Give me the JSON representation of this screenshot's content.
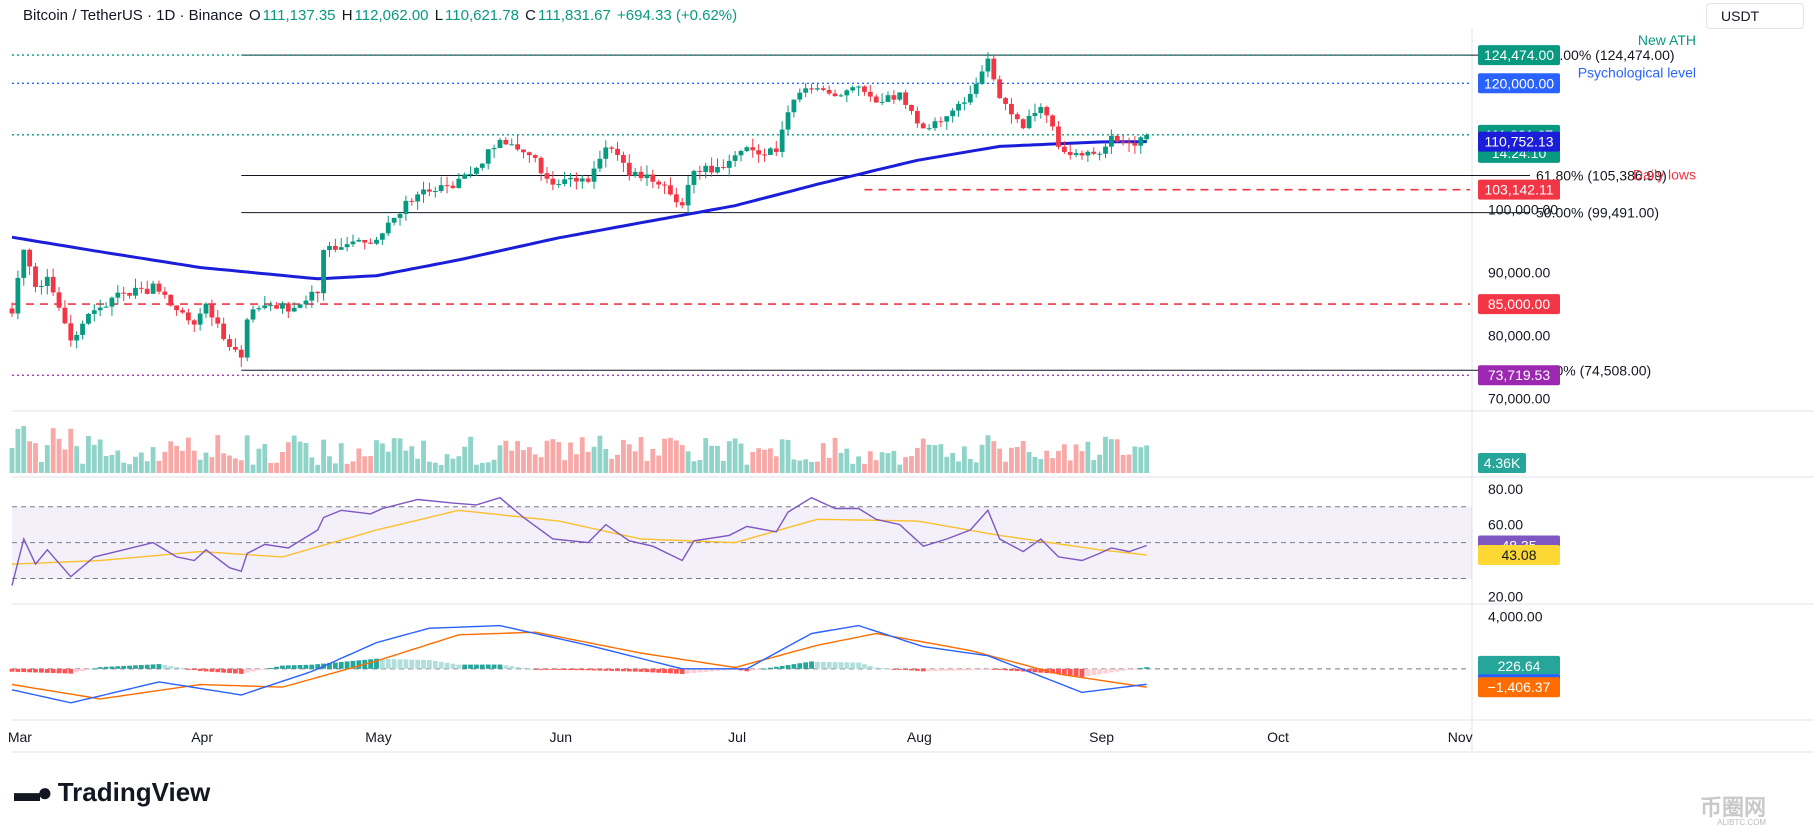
{
  "header": {
    "symbol": "Bitcoin / TetherUS · 1D · Binance",
    "o_label": "O",
    "o_value": "111,137.35",
    "h_label": "H",
    "h_value": "112,062.00",
    "l_label": "L",
    "l_value": "110,621.78",
    "c_label": "C",
    "c_value": "111,831.67",
    "change": "+694.33 (+0.62%)"
  },
  "currency": "USDT",
  "brand": "TradingView",
  "watermark": "币圈网",
  "watermark_sub": "ALIBTC.COM",
  "chart_data": [
    {
      "type": "candlestick",
      "pane": "price",
      "x_range": [
        "2025-02-28",
        "2025-11-03"
      ],
      "x_ticks": [
        "Mar",
        "Apr",
        "May",
        "Jun",
        "Jul",
        "Aug",
        "Sep",
        "Oct",
        "Nov"
      ],
      "x_tick_dates": [
        "2025-03-01",
        "2025-04-01",
        "2025-05-01",
        "2025-06-01",
        "2025-07-01",
        "2025-08-01",
        "2025-09-01",
        "2025-10-01",
        "2025-11-01"
      ],
      "ylim": [
        69000,
        127500
      ],
      "y_ticks": [
        "70,000.00",
        "80,000.00",
        "90,000.00",
        "100,000.00",
        "110,000.00",
        "120,000.00"
      ],
      "y_tick_values": [
        70000,
        80000,
        90000,
        100000,
        110000,
        120000
      ],
      "close_anchors": [
        [
          "2025-02-28",
          84300
        ],
        [
          "2025-03-02",
          94200
        ],
        [
          "2025-03-04",
          87300
        ],
        [
          "2025-03-06",
          89900
        ],
        [
          "2025-03-10",
          78600
        ],
        [
          "2025-03-14",
          84200
        ],
        [
          "2025-03-19",
          86800
        ],
        [
          "2025-03-24",
          87500
        ],
        [
          "2025-03-28",
          84300
        ],
        [
          "2025-03-31",
          82500
        ],
        [
          "2025-04-02",
          85200
        ],
        [
          "2025-04-06",
          78300
        ],
        [
          "2025-04-08",
          76300
        ],
        [
          "2025-04-09",
          82600
        ],
        [
          "2025-04-12",
          85300
        ],
        [
          "2025-04-16",
          84000
        ],
        [
          "2025-04-21",
          87500
        ],
        [
          "2025-04-22",
          93500
        ],
        [
          "2025-04-25",
          94700
        ],
        [
          "2025-04-30",
          94200
        ],
        [
          "2025-05-02",
          97000
        ],
        [
          "2025-05-08",
          103000
        ],
        [
          "2025-05-14",
          103500
        ],
        [
          "2025-05-18",
          106400
        ],
        [
          "2025-05-22",
          111700
        ],
        [
          "2025-05-26",
          109400
        ],
        [
          "2025-05-31",
          104600
        ],
        [
          "2025-06-06",
          104400
        ],
        [
          "2025-06-09",
          110200
        ],
        [
          "2025-06-13",
          105900
        ],
        [
          "2025-06-17",
          104500
        ],
        [
          "2025-06-22",
          100900
        ],
        [
          "2025-06-24",
          105800
        ],
        [
          "2025-06-30",
          107100
        ],
        [
          "2025-07-03",
          109600
        ],
        [
          "2025-07-08",
          108900
        ],
        [
          "2025-07-10",
          116000
        ],
        [
          "2025-07-14",
          119800
        ],
        [
          "2025-07-18",
          117900
        ],
        [
          "2025-07-22",
          120000
        ],
        [
          "2025-07-25",
          117600
        ],
        [
          "2025-07-29",
          117900
        ],
        [
          "2025-08-02",
          113200
        ],
        [
          "2025-08-06",
          114900
        ],
        [
          "2025-08-10",
          118700
        ],
        [
          "2025-08-13",
          123300
        ],
        [
          "2025-08-15",
          117400
        ],
        [
          "2025-08-19",
          113500
        ],
        [
          "2025-08-22",
          116900
        ],
        [
          "2025-08-25",
          110100
        ],
        [
          "2025-08-29",
          108400
        ],
        [
          "2025-09-01",
          109200
        ],
        [
          "2025-09-03",
          111700
        ],
        [
          "2025-09-06",
          110200
        ],
        [
          "2025-09-08",
          111137
        ]
      ],
      "last_candle": {
        "date": "2025-09-09",
        "open": 111137.35,
        "high": 112062.0,
        "low": 110621.78,
        "close": 111831.67
      },
      "all_time_high": {
        "date": "2025-08-14",
        "high": 124474
      },
      "ema_100": [
        [
          "2025-02-28",
          95600
        ],
        [
          "2025-03-15",
          93300
        ],
        [
          "2025-04-01",
          90800
        ],
        [
          "2025-04-21",
          89000
        ],
        [
          "2025-05-01",
          89500
        ],
        [
          "2025-05-15",
          92000
        ],
        [
          "2025-06-01",
          95500
        ],
        [
          "2025-06-15",
          97900
        ],
        [
          "2025-07-01",
          100600
        ],
        [
          "2025-07-15",
          104000
        ],
        [
          "2025-08-01",
          107800
        ],
        [
          "2025-08-15",
          110000
        ],
        [
          "2025-09-01",
          110700
        ],
        [
          "2025-09-09",
          110752
        ]
      ],
      "fibonacci": [
        {
          "label": "100.00% (124,474.00)",
          "value": 124474
        },
        {
          "label": "61.80% (105,386.99)",
          "value": 105387
        },
        {
          "label": "50.00% (99,491.00)",
          "value": 99491
        },
        {
          "label": "0.00% (74,508.00)",
          "value": 74508
        }
      ],
      "fib_range": [
        "2025-04-08",
        "2025-08-31"
      ],
      "levels": [
        {
          "name": "ath",
          "value": 124474,
          "style": "dotted",
          "color": "#089981",
          "label": "New ATH"
        },
        {
          "name": "psychological",
          "value": 120000,
          "style": "dotted",
          "color": "#2962ff",
          "label": "Psychological level"
        },
        {
          "name": "last_price",
          "value": 111831.67,
          "style": "dotted",
          "color": "#089981",
          "label": ""
        },
        {
          "name": "daily_lows",
          "value": 103142.11,
          "style": "dashed",
          "color": "#f23645",
          "label": "Daily lows",
          "start": "2025-07-23",
          "end": "2025-11-03"
        },
        {
          "name": "support_85k",
          "value": 85000,
          "style": "dashed",
          "color": "#f23645",
          "label": ""
        },
        {
          "name": "april_low",
          "value": 73719.53,
          "style": "dotted",
          "color": "#9c27b0",
          "label": ""
        }
      ],
      "price_tags": [
        {
          "text": "124,474.00",
          "value": 124474,
          "bg": "#089981",
          "fg": "#ffffff"
        },
        {
          "text": "120,000.00",
          "value": 120000,
          "bg": "#2962ff",
          "fg": "#ffffff"
        },
        {
          "text": "111,831.67",
          "value": 111831.67,
          "bg": "#089981",
          "fg": "#ffffff",
          "sub": "14:24:10"
        },
        {
          "text": "110,752.13",
          "value": 110752.13,
          "bg": "#1a1ed8",
          "fg": "#ffffff"
        },
        {
          "text": "103,142.11",
          "value": 103142.11,
          "bg": "#f23645",
          "fg": "#ffffff"
        },
        {
          "text": "85,000.00",
          "value": 85000,
          "bg": "#f23645",
          "fg": "#ffffff"
        },
        {
          "text": "73,719.53",
          "value": 73719.53,
          "bg": "#9c27b0",
          "fg": "#ffffff"
        }
      ]
    },
    {
      "type": "bar",
      "pane": "volume",
      "last_value": "4.36K",
      "tag_color": "#26a69a"
    },
    {
      "type": "line",
      "pane": "rsi",
      "ylim": [
        18,
        86
      ],
      "y_ticks": [
        "20.00",
        "60.00",
        "80.00"
      ],
      "y_tick_values": [
        20,
        60,
        80
      ],
      "band": [
        30,
        70
      ],
      "midline": 50,
      "rsi": [
        [
          "2025-02-28",
          26
        ],
        [
          "2025-03-02",
          52
        ],
        [
          "2025-03-04",
          38
        ],
        [
          "2025-03-06",
          46
        ],
        [
          "2025-03-10",
          31
        ],
        [
          "2025-03-14",
          42
        ],
        [
          "2025-03-19",
          46
        ],
        [
          "2025-03-24",
          50
        ],
        [
          "2025-03-28",
          42
        ],
        [
          "2025-03-31",
          40
        ],
        [
          "2025-04-02",
          46
        ],
        [
          "2025-04-06",
          36
        ],
        [
          "2025-04-08",
          34
        ],
        [
          "2025-04-09",
          44
        ],
        [
          "2025-04-12",
          49
        ],
        [
          "2025-04-16",
          47
        ],
        [
          "2025-04-21",
          57
        ],
        [
          "2025-04-22",
          64
        ],
        [
          "2025-04-25",
          68
        ],
        [
          "2025-04-30",
          66
        ],
        [
          "2025-05-02",
          69
        ],
        [
          "2025-05-08",
          74
        ],
        [
          "2025-05-14",
          72
        ],
        [
          "2025-05-18",
          71
        ],
        [
          "2025-05-22",
          75
        ],
        [
          "2025-05-26",
          64
        ],
        [
          "2025-05-31",
          52
        ],
        [
          "2025-06-06",
          50
        ],
        [
          "2025-06-09",
          60
        ],
        [
          "2025-06-13",
          51
        ],
        [
          "2025-06-17",
          48
        ],
        [
          "2025-06-22",
          40
        ],
        [
          "2025-06-24",
          51
        ],
        [
          "2025-06-30",
          54
        ],
        [
          "2025-07-03",
          59
        ],
        [
          "2025-07-08",
          56
        ],
        [
          "2025-07-10",
          67
        ],
        [
          "2025-07-14",
          75
        ],
        [
          "2025-07-18",
          69
        ],
        [
          "2025-07-22",
          69
        ],
        [
          "2025-07-25",
          63
        ],
        [
          "2025-07-29",
          60
        ],
        [
          "2025-08-02",
          48
        ],
        [
          "2025-08-06",
          52
        ],
        [
          "2025-08-10",
          57
        ],
        [
          "2025-08-13",
          68
        ],
        [
          "2025-08-15",
          52
        ],
        [
          "2025-08-19",
          45
        ],
        [
          "2025-08-22",
          52
        ],
        [
          "2025-08-25",
          42
        ],
        [
          "2025-08-29",
          40
        ],
        [
          "2025-09-01",
          44
        ],
        [
          "2025-09-03",
          47
        ],
        [
          "2025-09-06",
          45
        ],
        [
          "2025-09-09",
          48.35
        ]
      ],
      "rsi_ma": [
        [
          "2025-02-28",
          38
        ],
        [
          "2025-03-15",
          40
        ],
        [
          "2025-04-01",
          45
        ],
        [
          "2025-04-15",
          42
        ],
        [
          "2025-05-01",
          57
        ],
        [
          "2025-05-15",
          68
        ],
        [
          "2025-06-01",
          62
        ],
        [
          "2025-06-15",
          52
        ],
        [
          "2025-07-01",
          50
        ],
        [
          "2025-07-15",
          63
        ],
        [
          "2025-08-01",
          62
        ],
        [
          "2025-08-15",
          54
        ],
        [
          "2025-09-01",
          46
        ],
        [
          "2025-09-09",
          43.08
        ]
      ],
      "tags": [
        {
          "text": "48.35",
          "value": 48.35,
          "bg": "#7e57c2",
          "fg": "#ffffff"
        },
        {
          "text": "43.08",
          "value": 43.08,
          "bg": "#fdd835",
          "fg": "#131722"
        }
      ]
    },
    {
      "type": "line",
      "pane": "macd",
      "ylim": [
        -3300,
        4800
      ],
      "y_ticks": [
        "4,000.00"
      ],
      "y_tick_values": [
        4000
      ],
      "macd": [
        [
          "2025-02-28",
          -1600
        ],
        [
          "2025-03-10",
          -2600
        ],
        [
          "2025-03-25",
          -1000
        ],
        [
          "2025-04-08",
          -2000
        ],
        [
          "2025-04-20",
          -200
        ],
        [
          "2025-05-01",
          2000
        ],
        [
          "2025-05-10",
          3100
        ],
        [
          "2025-05-22",
          3300
        ],
        [
          "2025-06-06",
          1800
        ],
        [
          "2025-06-22",
          0
        ],
        [
          "2025-07-03",
          0
        ],
        [
          "2025-07-14",
          2700
        ],
        [
          "2025-07-22",
          3300
        ],
        [
          "2025-08-02",
          1700
        ],
        [
          "2025-08-13",
          1000
        ],
        [
          "2025-08-29",
          -1800
        ],
        [
          "2025-09-09",
          -1179.73
        ]
      ],
      "signal": [
        [
          "2025-02-28",
          -1200
        ],
        [
          "2025-03-15",
          -2300
        ],
        [
          "2025-04-01",
          -1200
        ],
        [
          "2025-04-15",
          -1400
        ],
        [
          "2025-05-01",
          600
        ],
        [
          "2025-05-15",
          2600
        ],
        [
          "2025-05-28",
          2800
        ],
        [
          "2025-06-15",
          1200
        ],
        [
          "2025-07-01",
          100
        ],
        [
          "2025-07-15",
          1800
        ],
        [
          "2025-07-25",
          2700
        ],
        [
          "2025-08-10",
          1400
        ],
        [
          "2025-08-25",
          -400
        ],
        [
          "2025-09-09",
          -1406.37
        ]
      ],
      "tags": [
        {
          "text": "226.64",
          "value": 226.64,
          "bg": "#26a69a",
          "fg": "#ffffff"
        },
        {
          "text": "−1,179.73",
          "value": -1179.73,
          "bg": "#2962ff",
          "fg": "#ffffff"
        },
        {
          "text": "−1,406.37",
          "value": -1406.37,
          "bg": "#ff6d00",
          "fg": "#ffffff"
        }
      ]
    }
  ]
}
